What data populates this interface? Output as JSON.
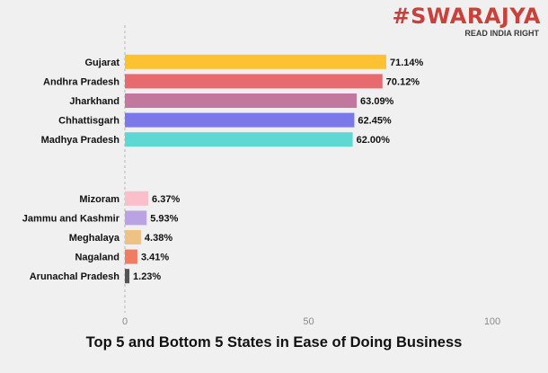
{
  "brand": {
    "name": "#SWARAJYA",
    "tagline": "READ INDIA RIGHT",
    "color": "#c8423b"
  },
  "chart_data": {
    "type": "bar",
    "orientation": "horizontal",
    "title": "Top 5 and Bottom 5 States in Ease of Doing Business",
    "xlabel": "",
    "ylabel": "",
    "xlim": [
      0,
      100
    ],
    "xticks": [
      0,
      50,
      100
    ],
    "grid": false,
    "groups": [
      {
        "name": "Top 5",
        "bars": [
          {
            "category": "Gujarat",
            "value": 71.14,
            "label": "71.14%",
            "color": "#fcc232"
          },
          {
            "category": "Andhra Pradesh",
            "value": 70.12,
            "label": "70.12%",
            "color": "#e86a6f"
          },
          {
            "category": "Jharkhand",
            "value": 63.09,
            "label": "63.09%",
            "color": "#c2779f"
          },
          {
            "category": "Chhattisgarh",
            "value": 62.45,
            "label": "62.45%",
            "color": "#7b78ea"
          },
          {
            "category": "Madhya Pradesh",
            "value": 62.0,
            "label": "62.00%",
            "color": "#5dd8d3"
          }
        ]
      },
      {
        "name": "Bottom 5",
        "bars": [
          {
            "category": "Mizoram",
            "value": 6.37,
            "label": "6.37%",
            "color": "#fbbfcb"
          },
          {
            "category": "Jammu and Kashmir",
            "value": 5.93,
            "label": "5.93%",
            "color": "#baa3e3"
          },
          {
            "category": "Meghalaya",
            "value": 4.38,
            "label": "4.38%",
            "color": "#eec184"
          },
          {
            "category": "Nagaland",
            "value": 3.41,
            "label": "3.41%",
            "color": "#ee7d63"
          },
          {
            "category": "Arunachal Pradesh",
            "value": 1.23,
            "label": "1.23%",
            "color": "#555555"
          }
        ]
      }
    ]
  }
}
